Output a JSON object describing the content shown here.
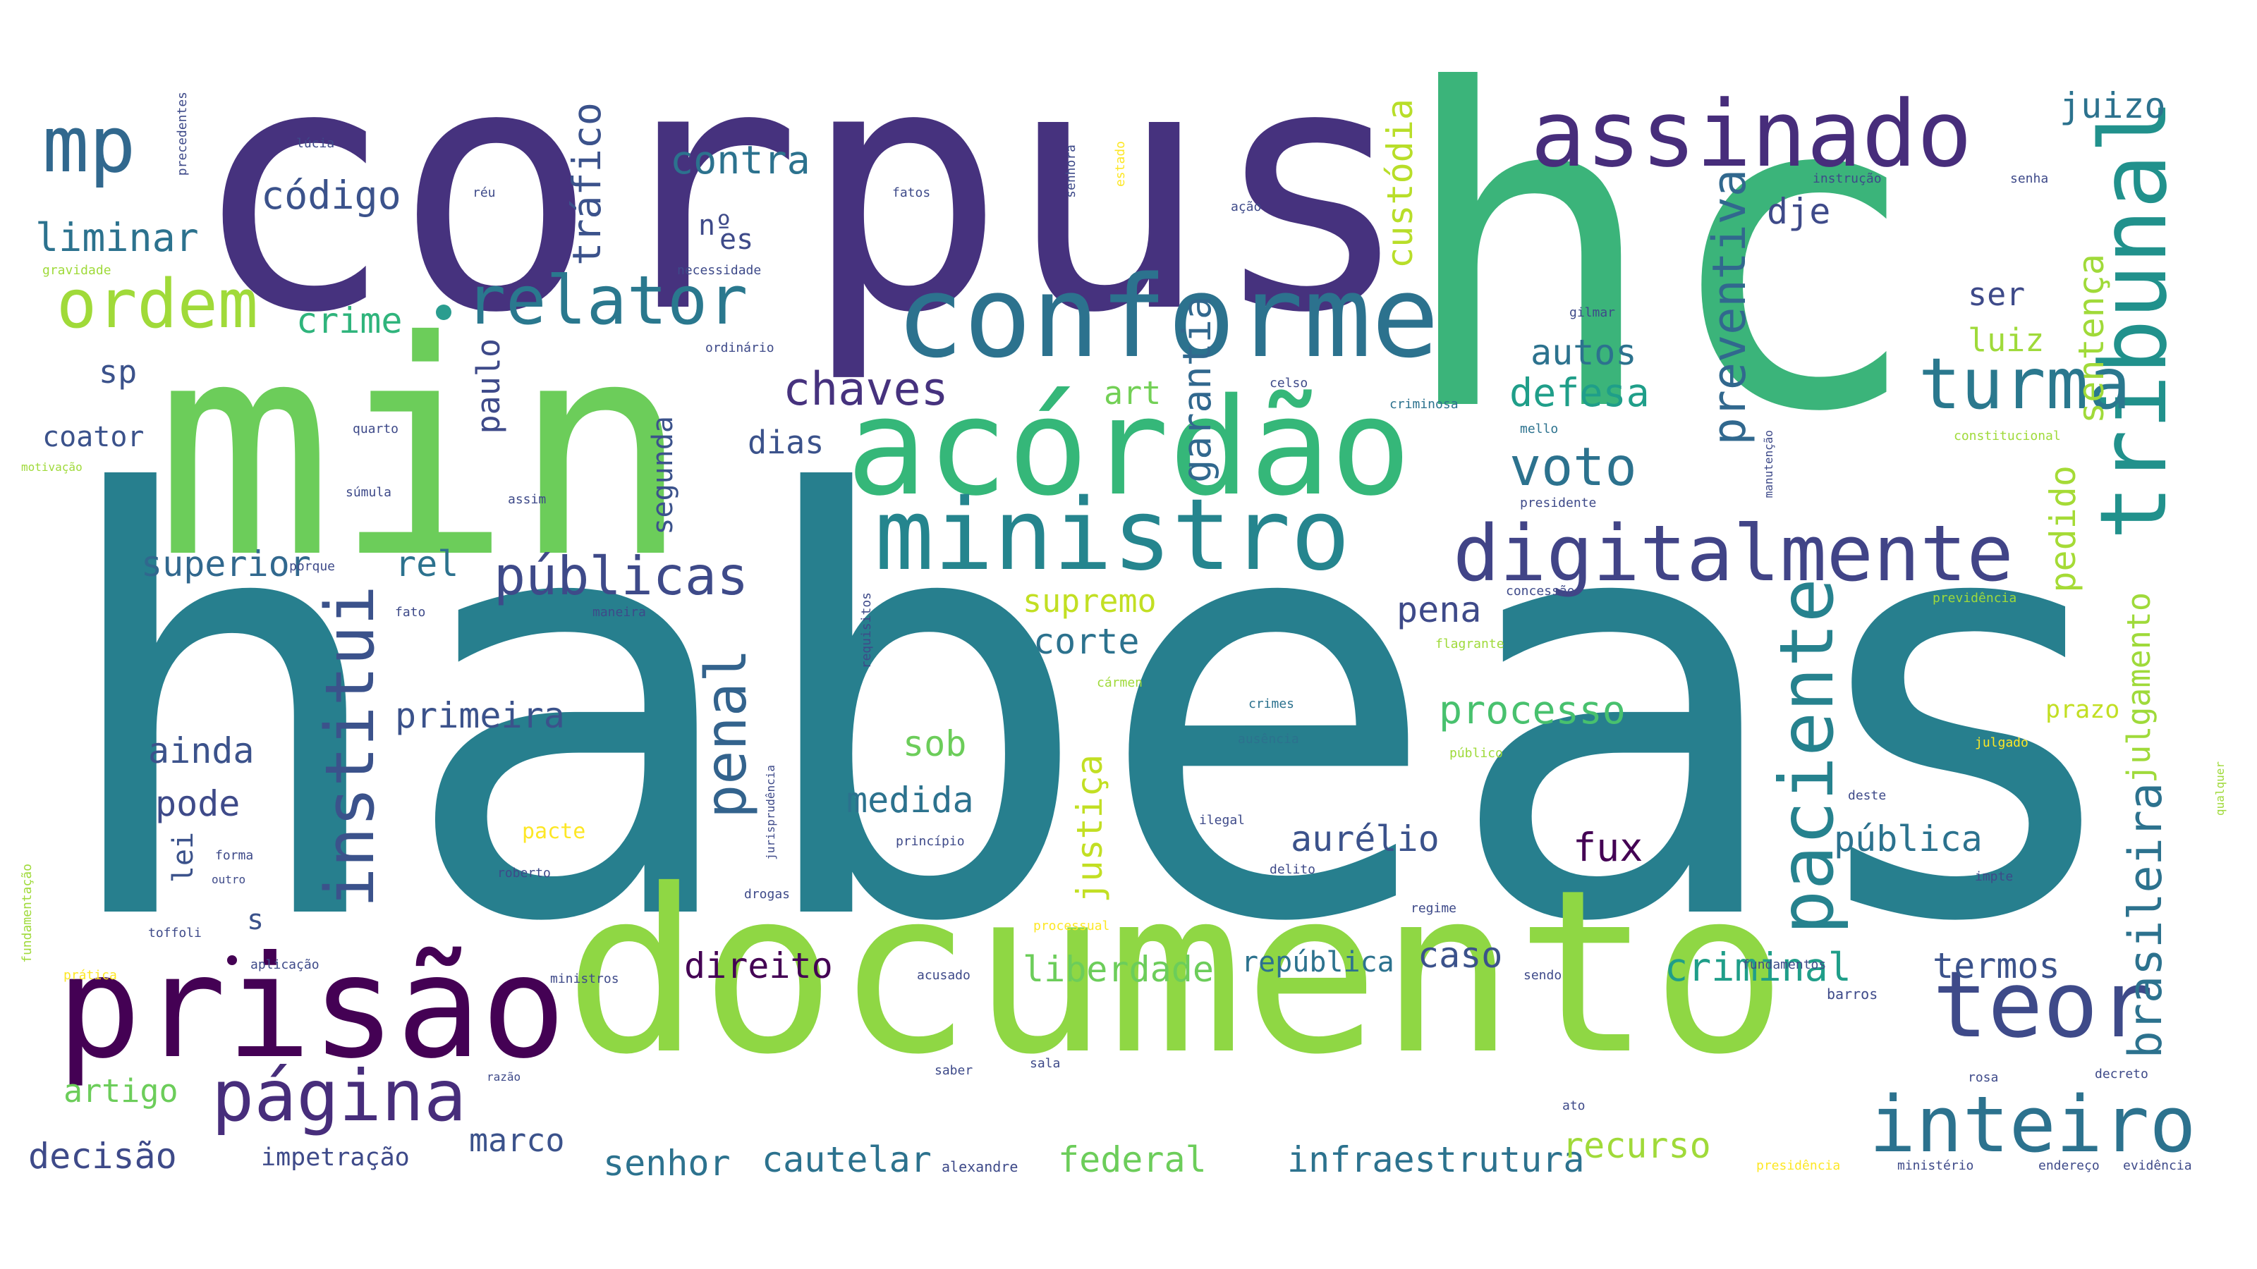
{
  "words": [
    {
      "id": "habeas",
      "text": "habeas",
      "color": "#277f8e"
    },
    {
      "id": "corpus",
      "text": "corpus",
      "color": "#46327e"
    },
    {
      "id": "hc",
      "text": "hc",
      "color": "#3bb47a"
    },
    {
      "id": "min",
      "text": "min",
      "color": "#6ccd5a"
    },
    {
      "id": "documento",
      "text": "documento",
      "color": "#8fd744"
    },
    {
      "id": "acordao",
      "text": "acórdão",
      "color": "#35b779"
    },
    {
      "id": "conforme",
      "text": "conforme",
      "color": "#2c728e"
    },
    {
      "id": "assinado",
      "text": "assinado",
      "color": "#472d7b"
    },
    {
      "id": "tribunal",
      "text": "tribunal",
      "color": "#21918c"
    },
    {
      "id": "prisao",
      "text": "prisão",
      "color": "#440154"
    },
    {
      "id": "ministro",
      "text": "ministro",
      "color": "#25858e"
    },
    {
      "id": "digitalmente",
      "text": "digitalmente",
      "color": "#414487"
    },
    {
      "id": "mp",
      "text": "mp",
      "color": "#31688e"
    },
    {
      "id": "ordem",
      "text": "ordem",
      "color": "#a0da39"
    },
    {
      "id": "relator",
      "text": "relator",
      "color": "#2a788e"
    },
    {
      "id": "turma",
      "text": "turma",
      "color": "#2a788e"
    },
    {
      "id": "teor",
      "text": "teor",
      "color": "#3e4a89"
    },
    {
      "id": "inteiro",
      "text": "inteiro",
      "color": "#2c728e"
    },
    {
      "id": "pagina",
      "text": "página",
      "color": "#472d7b"
    },
    {
      "id": "institui",
      "text": "institui",
      "color": "#3b528b"
    },
    {
      "id": "penal",
      "text": "penal",
      "color": "#33638d"
    },
    {
      "id": "paciente",
      "text": "paciente",
      "color": "#26828e"
    },
    {
      "id": "publicas",
      "text": "públicas",
      "color": "#3e4a89"
    },
    {
      "id": "chaves",
      "text": "chaves",
      "color": "#46327e"
    },
    {
      "id": "voto",
      "text": "voto",
      "color": "#2c728e"
    },
    {
      "id": "preventiva",
      "text": "preventiva",
      "color": "#31688e"
    },
    {
      "id": "brasileira",
      "text": "brasileira",
      "color": "#2c728e"
    },
    {
      "id": "contra",
      "text": "contra",
      "color": "#2c728e"
    },
    {
      "id": "codigo",
      "text": "código",
      "color": "#3b528b"
    },
    {
      "id": "liminar",
      "text": "liminar",
      "color": "#2c728e"
    },
    {
      "id": "crime",
      "text": "crime",
      "color": "#2fb47c"
    },
    {
      "id": "trafico",
      "text": "tráfico",
      "color": "#3b528b"
    },
    {
      "id": "custodia",
      "text": "custódia",
      "color": "#b8de29"
    },
    {
      "id": "garantia",
      "text": "garantia",
      "color": "#31688e"
    },
    {
      "id": "dje",
      "text": "dje",
      "color": "#3e4a89"
    },
    {
      "id": "juizo",
      "text": "juizo",
      "color": "#2c728e"
    },
    {
      "id": "ser",
      "text": "ser",
      "color": "#3e4a89"
    },
    {
      "id": "luiz",
      "text": "luiz",
      "color": "#9fda3a"
    },
    {
      "id": "sentenca",
      "text": "sentença",
      "color": "#a0da39"
    },
    {
      "id": "autos",
      "text": "autos",
      "color": "#2c728e"
    },
    {
      "id": "defesa",
      "text": "defesa",
      "color": "#1f9e89"
    },
    {
      "id": "sp",
      "text": "sp",
      "color": "#3b528b"
    },
    {
      "id": "paulo",
      "text": "paulo",
      "color": "#3e4a89"
    },
    {
      "id": "coator",
      "text": "coator",
      "color": "#3b528b"
    },
    {
      "id": "dias",
      "text": "dias",
      "color": "#3b528b"
    },
    {
      "id": "art",
      "text": "art",
      "color": "#73d056"
    },
    {
      "id": "superior",
      "text": "superior",
      "color": "#31688e"
    },
    {
      "id": "rel",
      "text": "rel",
      "color": "#2c728e"
    },
    {
      "id": "supremo",
      "text": "supremo",
      "color": "#c2df23"
    },
    {
      "id": "corte",
      "text": "corte",
      "color": "#2c728e"
    },
    {
      "id": "pena",
      "text": "pena",
      "color": "#3e4a89"
    },
    {
      "id": "pedido",
      "text": "pedido",
      "color": "#a5db36"
    },
    {
      "id": "primeira",
      "text": "primeira",
      "color": "#3b528b"
    },
    {
      "id": "processo",
      "text": "processo",
      "color": "#48c16e"
    },
    {
      "id": "ainda",
      "text": "ainda",
      "color": "#3b528b"
    },
    {
      "id": "sob",
      "text": "sob",
      "color": "#6ccd5a"
    },
    {
      "id": "pode",
      "text": "pode",
      "color": "#3e4a89"
    },
    {
      "id": "medida",
      "text": "medida",
      "color": "#2c728e"
    },
    {
      "id": "aurelio",
      "text": "aurélio",
      "color": "#3b528b"
    },
    {
      "id": "justica",
      "text": "justiça",
      "color": "#c2df23"
    },
    {
      "id": "fux",
      "text": "fux",
      "color": "#440154"
    },
    {
      "id": "publica",
      "text": "pública",
      "color": "#2c728e"
    },
    {
      "id": "julgamento",
      "text": "julgamento",
      "color": "#9fda3a"
    },
    {
      "id": "lei",
      "text": "lei",
      "color": "#3b528b"
    },
    {
      "id": "s",
      "text": "s",
      "color": "#3b528b"
    },
    {
      "id": "direito",
      "text": "direito",
      "color": "#440154"
    },
    {
      "id": "liberdade",
      "text": "liberdade",
      "color": "#6ccd5a"
    },
    {
      "id": "republica",
      "text": "república",
      "color": "#2c728e"
    },
    {
      "id": "caso",
      "text": "caso",
      "color": "#3b528b"
    },
    {
      "id": "criminal",
      "text": "criminal",
      "color": "#1f9e89"
    },
    {
      "id": "termos",
      "text": "termos",
      "color": "#3b528b"
    },
    {
      "id": "artigo",
      "text": "artigo",
      "color": "#6ccd5a"
    },
    {
      "id": "marco",
      "text": "marco",
      "color": "#3b528b"
    },
    {
      "id": "decisao",
      "text": "decisão",
      "color": "#3e4a89"
    },
    {
      "id": "impetracao",
      "text": "impetração",
      "color": "#3e4a89"
    },
    {
      "id": "senhor",
      "text": "senhor",
      "color": "#2c728e"
    },
    {
      "id": "cautelar",
      "text": "cautelar",
      "color": "#2c728e"
    },
    {
      "id": "federal",
      "text": "federal",
      "color": "#6ccd5a"
    },
    {
      "id": "infraestrutura",
      "text": "infraestrutura",
      "color": "#2c728e"
    },
    {
      "id": "recurso",
      "text": "recurso",
      "color": "#a0da39"
    },
    {
      "id": "prazo",
      "text": "prazo",
      "color": "#c2df23"
    },
    {
      "id": "no",
      "text": "nº",
      "color": "#3e4a89"
    },
    {
      "id": "es",
      "text": "es",
      "color": "#3e4a89"
    },
    {
      "id": "segunda",
      "text": "segunda",
      "color": "#3b528b"
    },
    {
      "id": "pacte",
      "text": "pacte",
      "color": "#fde725"
    },
    {
      "id": "fundamentos",
      "text": "fundamentos",
      "color": "#3e4a89"
    },
    {
      "id": "barros",
      "text": "barros",
      "color": "#3e4a89"
    },
    {
      "id": "rosa",
      "text": "rosa",
      "color": "#3e4a89"
    },
    {
      "id": "decreto",
      "text": "decreto",
      "color": "#3e4a89"
    },
    {
      "id": "alexandre",
      "text": "alexandre",
      "color": "#3e4a89"
    },
    {
      "id": "presidencia",
      "text": "presidência",
      "color": "#fde725"
    },
    {
      "id": "ministerio",
      "text": "ministério",
      "color": "#3e4a89"
    },
    {
      "id": "endereco",
      "text": "endereço",
      "color": "#3e4a89"
    },
    {
      "id": "evidencia",
      "text": "evidência",
      "color": "#3e4a89"
    },
    {
      "id": "gravidade",
      "text": "gravidade",
      "color": "#9fda3a"
    },
    {
      "id": "motivacao",
      "text": "motivação",
      "color": "#9fda3a"
    },
    {
      "id": "necessidade",
      "text": "necessidade",
      "color": "#3e4a89"
    },
    {
      "id": "ordinario",
      "text": "ordinário",
      "color": "#3e4a89"
    },
    {
      "id": "fatos",
      "text": "fatos",
      "color": "#3e4a89"
    },
    {
      "id": "instrucao",
      "text": "instrução",
      "color": "#3e4a89"
    },
    {
      "id": "senha",
      "text": "senha",
      "color": "#3e4a89"
    },
    {
      "id": "gilmar",
      "text": "gilmar",
      "color": "#3e4a89"
    },
    {
      "id": "celso",
      "text": "celso",
      "color": "#3e4a89"
    },
    {
      "id": "criminosa",
      "text": "criminosa",
      "color": "#2c728e"
    },
    {
      "id": "mello",
      "text": "mello",
      "color": "#2c728e"
    },
    {
      "id": "presidente",
      "text": "presidente",
      "color": "#3e4a89"
    },
    {
      "id": "constitucional",
      "text": "constitucional",
      "color": "#9fda3a"
    },
    {
      "id": "crimes",
      "text": "crimes",
      "color": "#2c728e"
    },
    {
      "id": "ausencia",
      "text": "ausência",
      "color": "#2c728e"
    },
    {
      "id": "ilegal",
      "text": "ilegal",
      "color": "#3e4a89"
    },
    {
      "id": "delito",
      "text": "delito",
      "color": "#3e4a89"
    },
    {
      "id": "drogas",
      "text": "drogas",
      "color": "#3e4a89"
    },
    {
      "id": "regime",
      "text": "regime",
      "color": "#3e4a89"
    },
    {
      "id": "processual",
      "text": "processual",
      "color": "#fde725"
    },
    {
      "id": "acusado",
      "text": "acusado",
      "color": "#3e4a89"
    },
    {
      "id": "sendo",
      "text": "sendo",
      "color": "#3e4a89"
    },
    {
      "id": "forma",
      "text": "forma",
      "color": "#3e4a89"
    },
    {
      "id": "outro",
      "text": "outro",
      "color": "#3e4a89"
    },
    {
      "id": "toffoli",
      "text": "toffoli",
      "color": "#3e4a89"
    },
    {
      "id": "roberto",
      "text": "roberto",
      "color": "#3e4a89"
    },
    {
      "id": "principio",
      "text": "princípio",
      "color": "#3e4a89"
    },
    {
      "id": "aplicacao",
      "text": "aplicação",
      "color": "#3e4a89"
    },
    {
      "id": "pratica",
      "text": "prática",
      "color": "#fde725"
    },
    {
      "id": "ministros",
      "text": "ministros",
      "color": "#3e4a89"
    },
    {
      "id": "quarto",
      "text": "quarto",
      "color": "#3e4a89"
    },
    {
      "id": "sumula",
      "text": "súmula",
      "color": "#3e4a89"
    },
    {
      "id": "assim",
      "text": "assim",
      "color": "#3e4a89"
    },
    {
      "id": "porque",
      "text": "porque",
      "color": "#3e4a89"
    },
    {
      "id": "fato",
      "text": "fato",
      "color": "#3e4a89"
    },
    {
      "id": "maneira",
      "text": "maneira",
      "color": "#3e4a89"
    },
    {
      "id": "fundamentacao",
      "text": "fundamentação",
      "color": "#9fda3a"
    },
    {
      "id": "jurisprudencia",
      "text": "jurisprudência",
      "color": "#3e4a89"
    },
    {
      "id": "flagrante",
      "text": "flagrante",
      "color": "#9fda3a"
    },
    {
      "id": "carmen",
      "text": "cármen",
      "color": "#9fda3a"
    },
    {
      "id": "publico",
      "text": "público",
      "color": "#9fda3a"
    },
    {
      "id": "julgado",
      "text": "julgado",
      "color": "#fde725"
    },
    {
      "id": "deste",
      "text": "deste",
      "color": "#3e4a89"
    },
    {
      "id": "impte",
      "text": "impte",
      "color": "#3e4a89"
    },
    {
      "id": "qualquer",
      "text": "qualquer",
      "color": "#9fda3a"
    },
    {
      "id": "concessao",
      "text": "concessão",
      "color": "#3e4a89"
    },
    {
      "id": "previdencia",
      "text": "previdência",
      "color": "#9fda3a"
    },
    {
      "id": "requisitos",
      "text": "requisitos",
      "color": "#3e4a89"
    },
    {
      "id": "saber",
      "text": "saber",
      "color": "#3e4a89"
    },
    {
      "id": "razao",
      "text": "razão",
      "color": "#3e4a89"
    },
    {
      "id": "sala",
      "text": "sala",
      "color": "#3e4a89"
    },
    {
      "id": "ato",
      "text": "ato",
      "color": "#3e4a89"
    },
    {
      "id": "lucia",
      "text": "lúcia",
      "color": "#3e4a89"
    },
    {
      "id": "reu",
      "text": "réu",
      "color": "#3e4a89"
    },
    {
      "id": "acao",
      "text": "ação",
      "color": "#3e4a89"
    },
    {
      "id": "precedentes",
      "text": "precedentes",
      "color": "#3e4a89"
    },
    {
      "id": "senhora",
      "text": "senhora",
      "color": "#3e4a89"
    },
    {
      "id": "estado",
      "text": "estado",
      "color": "#fde725"
    },
    {
      "id": "manutencao",
      "text": "manutenção",
      "color": "#3e4a89"
    }
  ]
}
